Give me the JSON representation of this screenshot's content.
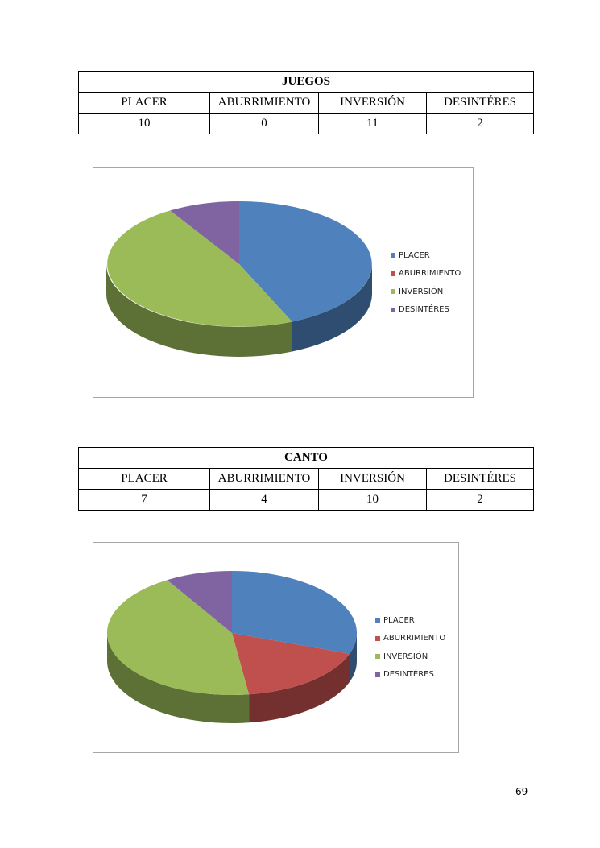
{
  "tables": [
    {
      "title": "JUEGOS",
      "headers": [
        "PLACER",
        "ABURRIMIENTO",
        "INVERSIÓN",
        "DESINTÉRES"
      ],
      "values": [
        "10",
        "0",
        "11",
        "2"
      ]
    },
    {
      "title": "CANTO",
      "headers": [
        "PLACER",
        "ABURRIMIENTO",
        "INVERSIÓN",
        "DESINTÉRES"
      ],
      "values": [
        "7",
        "4",
        "10",
        "2"
      ]
    }
  ],
  "chart_data": [
    {
      "type": "pie",
      "style": "3d",
      "categories": [
        "PLACER",
        "ABURRIMIENTO",
        "INVERSIÓN",
        "DESINTÉRES"
      ],
      "values": [
        10,
        0,
        11,
        2
      ],
      "colors": [
        "#4f81bd",
        "#c0504d",
        "#9bbb59",
        "#8064a2"
      ],
      "legend": "right"
    },
    {
      "type": "pie",
      "style": "3d",
      "categories": [
        "PLACER",
        "ABURRIMIENTO",
        "INVERSIÓN",
        "DESINTÉRES"
      ],
      "values": [
        7,
        4,
        10,
        2
      ],
      "colors": [
        "#4f81bd",
        "#c0504d",
        "#9bbb59",
        "#8064a2"
      ],
      "legend": "right"
    }
  ],
  "page_number": "69"
}
